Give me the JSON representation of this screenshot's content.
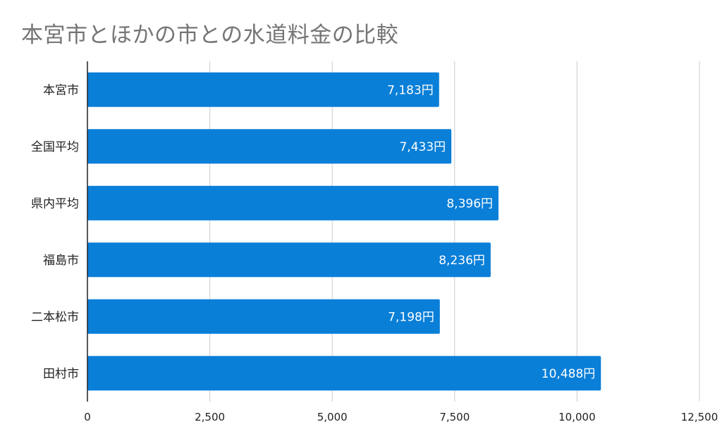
{
  "chart_data": {
    "type": "bar",
    "orientation": "horizontal",
    "title": "本宮市とほかの市との水道料金の比較",
    "categories": [
      "本宮市",
      "全国平均",
      "県内平均",
      "福島市",
      "二本松市",
      "田村市"
    ],
    "values": [
      7183,
      7433,
      8396,
      8236,
      7198,
      10488
    ],
    "data_labels": [
      "7,183円",
      "7,433円",
      "8,396円",
      "8,236円",
      "7,198円",
      "10,488円"
    ],
    "xlim": [
      0,
      12500
    ],
    "xticks": [
      0,
      2500,
      5000,
      7500,
      10000,
      12500
    ],
    "xtick_labels": [
      "0",
      "2,500",
      "5,000",
      "7,500",
      "10,000",
      "12,500"
    ],
    "xlabel": "",
    "ylabel": "",
    "grid": true,
    "legend": "none",
    "colors": {
      "bar": "#0a7fd8",
      "grid": "#cccccc",
      "title": "#757575"
    }
  }
}
